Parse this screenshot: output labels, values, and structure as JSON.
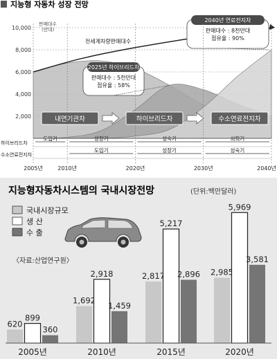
{
  "chart_data": [
    {
      "type": "area",
      "title": "지능형 자동차 성장 전망",
      "unit_label": "판매대수\n(만대)",
      "y_ticks": [
        "10,000",
        "8,000",
        "6,000",
        "4,000",
        "2,000"
      ],
      "ylim": [
        0,
        10000
      ],
      "x_ticks": [
        "2005년",
        "2010년",
        "2020년",
        "2030년",
        "2040년"
      ],
      "xlim": [
        2005,
        2040
      ],
      "total_line_label": "전세계차량판매대수",
      "series": [
        {
          "name": "내연기관차",
          "x": [
            2005,
            2010,
            2015,
            2020,
            2025,
            2030,
            2035,
            2040
          ],
          "values": [
            6000,
            6800,
            7000,
            6300,
            4800,
            3000,
            1600,
            800
          ]
        },
        {
          "name": "하이브리드차",
          "x": [
            2005,
            2010,
            2015,
            2020,
            2025,
            2030,
            2035,
            2040
          ],
          "values": [
            0,
            100,
            700,
            2600,
            4800,
            4400,
            3100,
            2000
          ]
        },
        {
          "name": "수소연료전지차",
          "x": [
            2005,
            2010,
            2015,
            2020,
            2025,
            2030,
            2035,
            2040
          ],
          "values": [
            0,
            0,
            0,
            200,
            800,
            2800,
            5600,
            8000
          ]
        }
      ],
      "callouts": [
        {
          "title": "2025년 하이브리드차",
          "lines": [
            "판매대수 : 5천만대",
            "점유율 : 58%"
          ]
        },
        {
          "title": "2040년 연료전지차",
          "lines": [
            "판매대수 : 8천만대",
            "점유율 : 90%"
          ]
        }
      ],
      "phases": [
        {
          "name": "내연기관차"
        },
        {
          "name": "하이브리드차"
        },
        {
          "name": "수소연료전지차"
        }
      ],
      "lifecycle_rows": [
        {
          "label": "하이브리드차",
          "stages": [
            {
              "name": "도입기",
              "from": 2005,
              "to": 2010
            },
            {
              "name": "성장기",
              "from": 2010,
              "to": 2020
            },
            {
              "name": "성숙기",
              "from": 2020,
              "to": 2030
            },
            {
              "name": "쇠퇴기",
              "from": 2030,
              "to": 2040
            }
          ]
        },
        {
          "label": "수소연료전지차",
          "stages": [
            {
              "name": "도입기",
              "from": 2010,
              "to": 2020
            },
            {
              "name": "성장기",
              "from": 2020,
              "to": 2030
            },
            {
              "name": "성숙기",
              "from": 2030,
              "to": 2040
            }
          ]
        }
      ]
    },
    {
      "type": "bar",
      "title": "지능형자동차시스템의 국내시장전망",
      "unit": "(단위:백만달러)",
      "categories": [
        "2005년",
        "2010년",
        "2015년",
        "2020년"
      ],
      "series": [
        {
          "name": "국내시장규모",
          "values": [
            620,
            1692,
            2817,
            2985
          ]
        },
        {
          "name": "생 산",
          "values": [
            899,
            2918,
            5217,
            5969
          ]
        },
        {
          "name": "수 출",
          "values": [
            360,
            1459,
            2896,
            3581
          ]
        }
      ],
      "labels": [
        [
          "620",
          "1,692",
          "2,817",
          "2,985"
        ],
        [
          "899",
          "2,918",
          "5,217",
          "5,969"
        ],
        [
          "360",
          "1,459",
          "2,896",
          "3,581"
        ]
      ],
      "source": "〈자료:산업연구원〉",
      "ylim": [
        0,
        6200
      ]
    }
  ],
  "colors": {
    "ice": "#bdbdbd",
    "hybrid": "#a6a6a6",
    "fuelcell": "#d3d3d3",
    "header_bar": "#606060",
    "callout": "#4a4a4a",
    "domestic": "#c8c8c8",
    "production": "#ffffff",
    "export": "#757575",
    "bottom_bg": "#e9e9e9"
  }
}
